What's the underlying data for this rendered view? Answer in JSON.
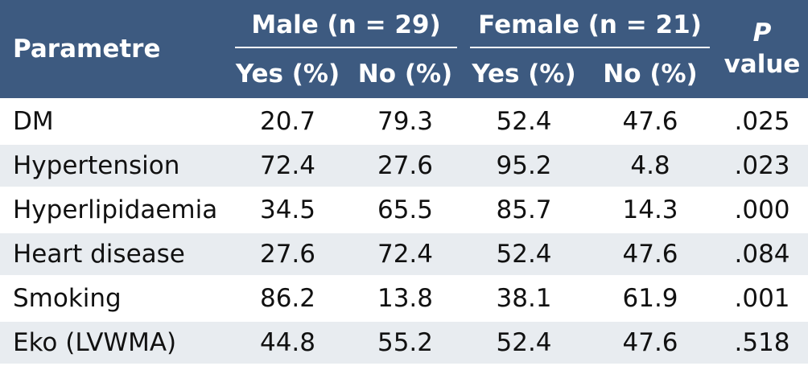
{
  "header": {
    "parametre": "Parametre",
    "male_group": "Male (n = 29)",
    "female_group": "Female (n = 21)",
    "p_label": "P",
    "value_label": "value",
    "yes": "Yes (%)",
    "no": "No (%)"
  },
  "rows": [
    {
      "label": "DM",
      "male_yes": "20.7",
      "male_no": "79.3",
      "female_yes": "52.4",
      "female_no": "47.6",
      "p": ".025"
    },
    {
      "label": "Hypertension",
      "male_yes": "72.4",
      "male_no": "27.6",
      "female_yes": "95.2",
      "female_no": "4.8",
      "p": ".023"
    },
    {
      "label": "Hyperlipidaemia",
      "male_yes": "34.5",
      "male_no": "65.5",
      "female_yes": "85.7",
      "female_no": "14.3",
      "p": ".000"
    },
    {
      "label": "Heart disease",
      "male_yes": "27.6",
      "male_no": "72.4",
      "female_yes": "52.4",
      "female_no": "47.6",
      "p": ".084"
    },
    {
      "label": "Smoking",
      "male_yes": "86.2",
      "male_no": "13.8",
      "female_yes": "38.1",
      "female_no": "61.9",
      "p": ".001"
    },
    {
      "label": "Eko (LVWMA)",
      "male_yes": "44.8",
      "male_no": "55.2",
      "female_yes": "52.4",
      "female_no": "47.6",
      "p": ".518"
    }
  ]
}
